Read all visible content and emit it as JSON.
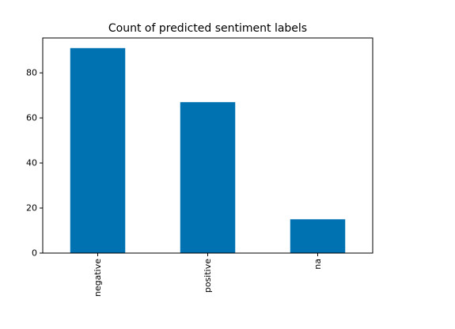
{
  "chart_data": {
    "type": "bar",
    "title": "Count of predicted sentiment labels",
    "xlabel": "",
    "ylabel": "",
    "categories": [
      "negative",
      "positive",
      "na"
    ],
    "values": [
      91,
      67,
      15
    ],
    "ylim": [
      0,
      95.5
    ],
    "yticks": [
      0,
      20,
      40,
      60,
      80
    ],
    "grid": false,
    "legend": "none",
    "bar_color": "#0072b2",
    "x_tick_rotation": "vertical"
  }
}
